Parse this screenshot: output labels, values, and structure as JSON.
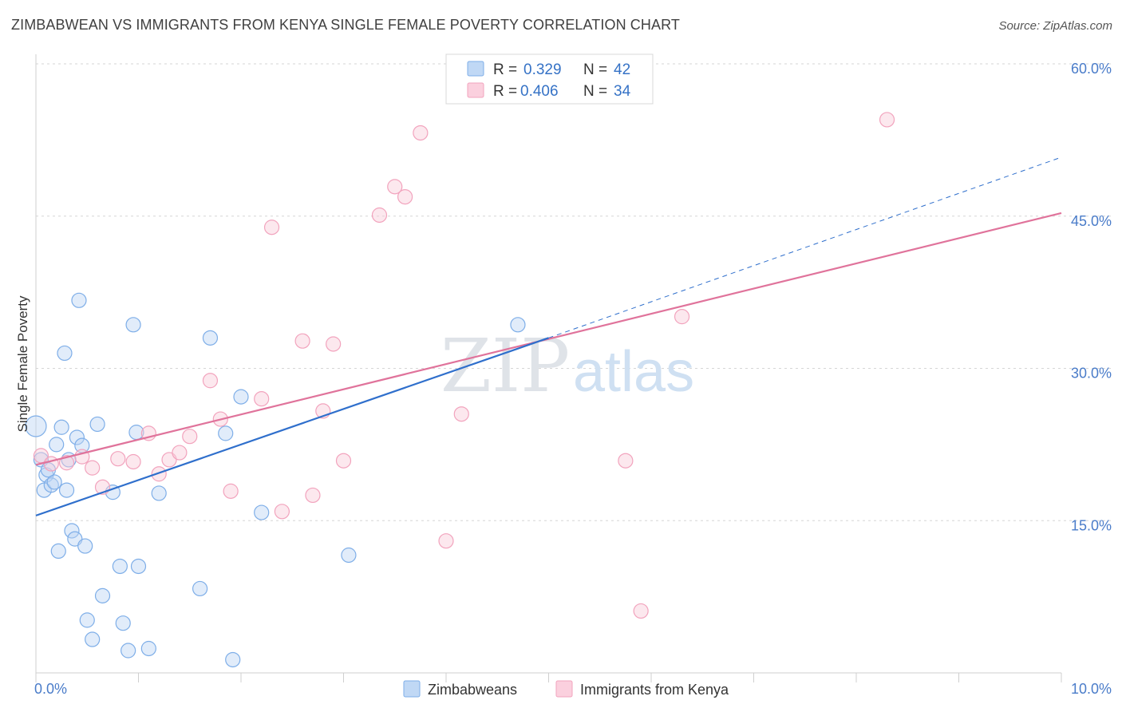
{
  "title": "ZIMBABWEAN VS IMMIGRANTS FROM KENYA SINGLE FEMALE POVERTY CORRELATION CHART",
  "source": "Source: ZipAtlas.com",
  "watermark": {
    "zip": "ZIP",
    "atlas": "atlas"
  },
  "chart_data": {
    "type": "scatter",
    "title": "ZIMBABWEAN VS IMMIGRANTS FROM KENYA SINGLE FEMALE POVERTY CORRELATION CHART",
    "xlabel": "",
    "ylabel": "Single Female Poverty",
    "xlim": [
      0,
      10
    ],
    "ylim": [
      0,
      60
    ],
    "x_tick_labels": [
      "0.0%",
      "10.0%"
    ],
    "y_ticks": [
      15,
      30,
      45,
      60
    ],
    "y_tick_labels": [
      "15.0%",
      "30.0%",
      "45.0%",
      "60.0%"
    ],
    "grid": true,
    "legend_position": "top-center",
    "legend": [
      {
        "r_label": "R =",
        "r_value": "0.329",
        "n_label": "N =",
        "n_value": "42"
      },
      {
        "r_label": "R =",
        "r_value": "0.406",
        "n_label": "N =",
        "n_value": "34"
      }
    ],
    "series": [
      {
        "name": "Zimbabweans",
        "color": "#7eaee8",
        "line_color": "#2f6fcc",
        "trend": {
          "x0": 0,
          "y0": 15.5,
          "x1": 5,
          "y1": 33.0,
          "dash_to_x": 10,
          "dash_to_y": 50.8
        },
        "points": [
          [
            0.0,
            24.3
          ],
          [
            0.05,
            21.0
          ],
          [
            0.08,
            18.0
          ],
          [
            0.1,
            19.5
          ],
          [
            0.15,
            18.5
          ],
          [
            0.18,
            18.8
          ],
          [
            0.2,
            22.5
          ],
          [
            0.22,
            12.0
          ],
          [
            0.25,
            24.2
          ],
          [
            0.28,
            31.5
          ],
          [
            0.3,
            18.0
          ],
          [
            0.32,
            21.0
          ],
          [
            0.35,
            14.0
          ],
          [
            0.38,
            13.2
          ],
          [
            0.4,
            23.2
          ],
          [
            0.42,
            36.7
          ],
          [
            0.45,
            22.4
          ],
          [
            0.48,
            12.5
          ],
          [
            0.5,
            5.2
          ],
          [
            0.55,
            3.3
          ],
          [
            0.6,
            24.5
          ],
          [
            0.65,
            7.6
          ],
          [
            0.75,
            17.8
          ],
          [
            0.82,
            10.5
          ],
          [
            0.85,
            4.9
          ],
          [
            0.9,
            2.2
          ],
          [
            0.95,
            34.3
          ],
          [
            0.98,
            23.7
          ],
          [
            1.0,
            10.5
          ],
          [
            1.1,
            2.4
          ],
          [
            1.2,
            17.7
          ],
          [
            1.6,
            8.3
          ],
          [
            1.7,
            33.0
          ],
          [
            1.85,
            23.6
          ],
          [
            1.92,
            1.3
          ],
          [
            2.0,
            27.2
          ],
          [
            2.2,
            15.8
          ],
          [
            3.05,
            11.6
          ],
          [
            4.3,
            59.5
          ],
          [
            4.6,
            59.3
          ],
          [
            4.7,
            34.3
          ],
          [
            0.12,
            20.0
          ]
        ]
      },
      {
        "name": "Immigrants from Kenya",
        "color": "#f2a3bd",
        "line_color": "#e0739b",
        "trend": {
          "x0": 0,
          "y0": 20.5,
          "x1": 10,
          "y1": 45.3
        },
        "points": [
          [
            0.05,
            21.4
          ],
          [
            0.15,
            20.6
          ],
          [
            0.3,
            20.7
          ],
          [
            0.45,
            21.3
          ],
          [
            0.55,
            20.2
          ],
          [
            0.65,
            18.3
          ],
          [
            0.8,
            21.1
          ],
          [
            0.95,
            20.8
          ],
          [
            1.1,
            23.6
          ],
          [
            1.2,
            19.6
          ],
          [
            1.3,
            21.0
          ],
          [
            1.4,
            21.7
          ],
          [
            1.5,
            23.3
          ],
          [
            1.7,
            28.8
          ],
          [
            1.8,
            25.0
          ],
          [
            1.9,
            17.9
          ],
          [
            2.2,
            27.0
          ],
          [
            2.3,
            43.9
          ],
          [
            2.4,
            15.9
          ],
          [
            2.6,
            32.7
          ],
          [
            2.7,
            17.5
          ],
          [
            2.8,
            25.8
          ],
          [
            2.9,
            32.4
          ],
          [
            3.0,
            20.9
          ],
          [
            3.35,
            45.1
          ],
          [
            3.5,
            47.9
          ],
          [
            3.6,
            46.9
          ],
          [
            3.75,
            53.2
          ],
          [
            4.0,
            13.0
          ],
          [
            4.15,
            25.5
          ],
          [
            5.75,
            20.9
          ],
          [
            5.9,
            6.1
          ],
          [
            6.3,
            35.1
          ],
          [
            8.3,
            54.5
          ]
        ]
      }
    ]
  }
}
